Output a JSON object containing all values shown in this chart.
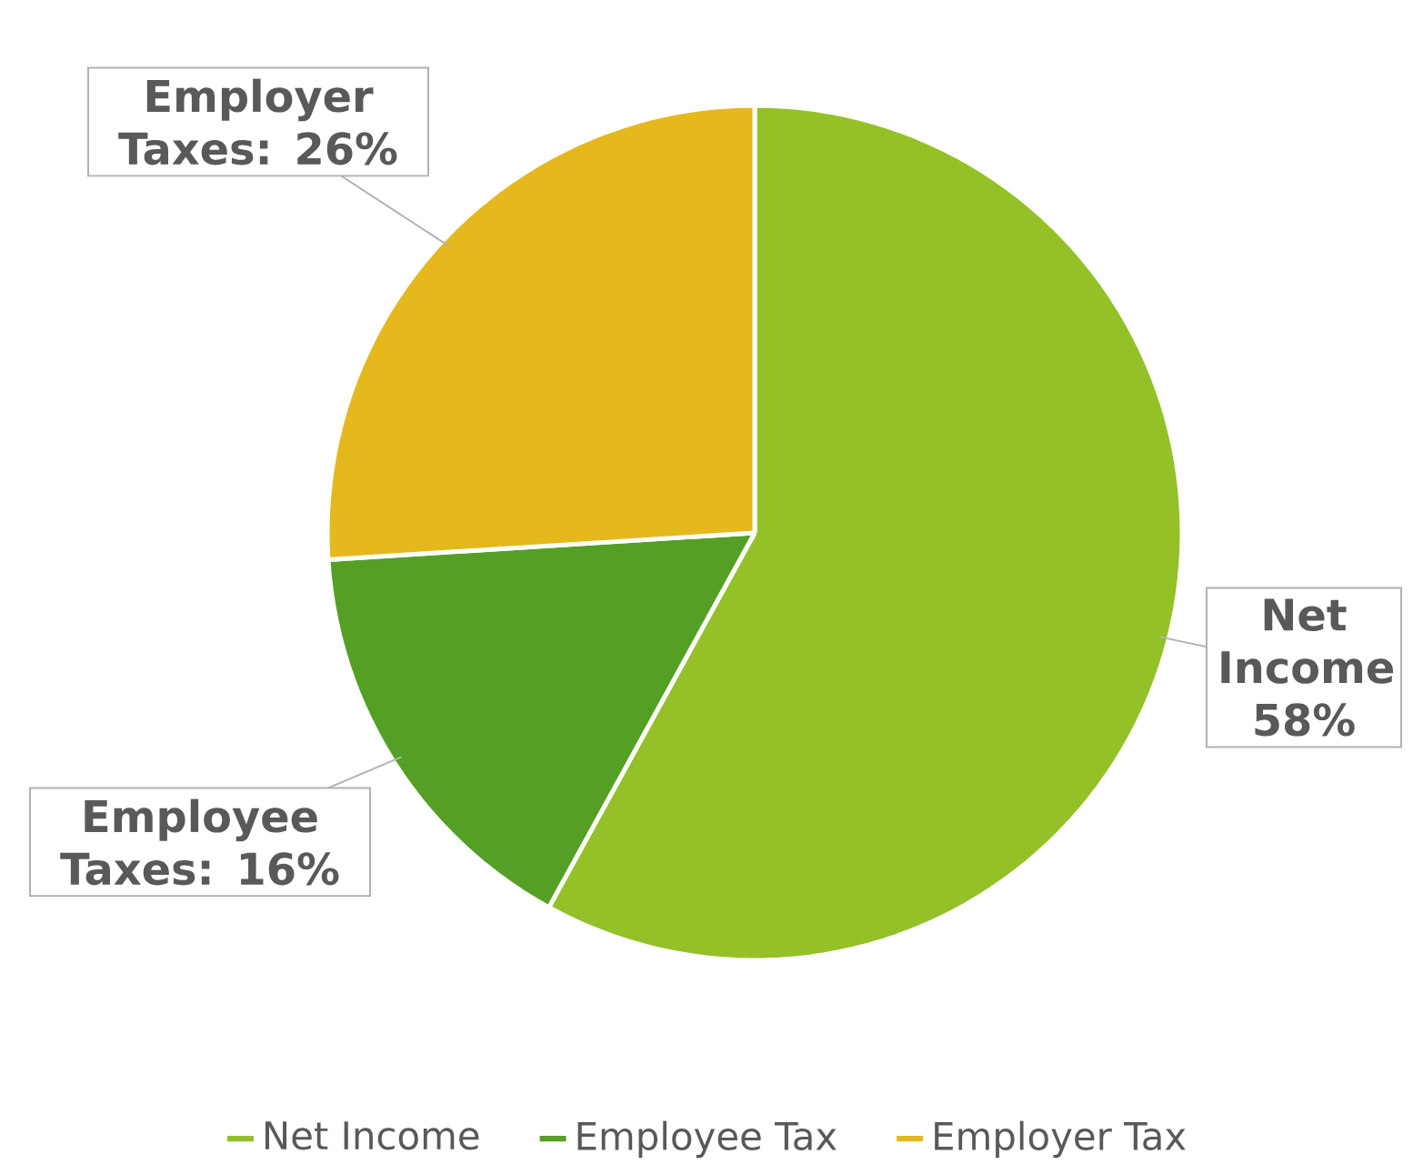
{
  "chart_data": {
    "type": "pie",
    "categories": [
      "Net Income",
      "Employee Tax",
      "Employer Tax"
    ],
    "values": [
      58,
      16,
      26
    ],
    "colors": [
      "#93c127",
      "#55a024",
      "#e5b81e"
    ],
    "value_labels": [
      "Net Income 58%",
      "Employee Taxes: 16%",
      "Employer Taxes: 26%"
    ],
    "legend": "bottom"
  }
}
